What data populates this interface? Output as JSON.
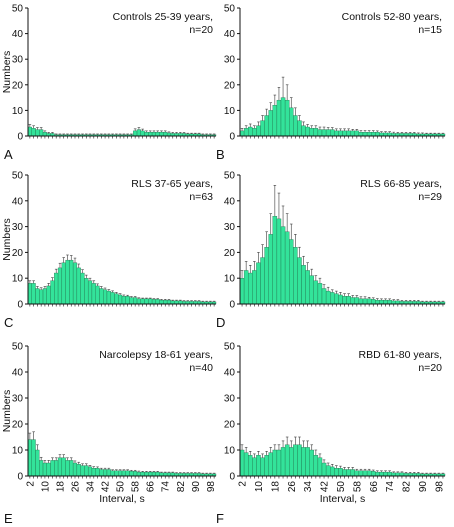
{
  "colors": {
    "bar_fill": "#33E39A",
    "bar_stroke": "#1F6B48",
    "error": "#3A3A3A",
    "axis": "#111111"
  },
  "chart_data": [
    {
      "type": "bar",
      "panel": "A",
      "title_line1": "Controls 25-39 years,",
      "title_line2": "n=20",
      "ylabel": "Numbers",
      "xlabel": "",
      "ylim": [
        0,
        50
      ],
      "yticks": [
        0,
        10,
        20,
        30,
        40,
        50
      ],
      "xticklabels": [],
      "x_start": 2,
      "x_step": 2,
      "values": [
        3.5,
        3,
        2.5,
        2.5,
        1.5,
        1,
        1,
        0.5,
        0.5,
        0.5,
        0.5,
        0.5,
        0.5,
        0.5,
        0.5,
        0.5,
        0.5,
        0.5,
        0.5,
        0.5,
        0.5,
        0.5,
        0.5,
        0.5,
        0.5,
        0.5,
        0.5,
        0.5,
        2,
        2.5,
        2,
        1.5,
        1.5,
        1.5,
        1.5,
        1.5,
        1.5,
        1.2,
        1,
        1,
        1,
        1,
        0.8,
        0.8,
        0.8,
        0.8,
        0.5,
        0.5,
        0.5,
        0.5
      ],
      "errors": [
        1,
        1,
        0.8,
        0.8,
        0.5,
        0.4,
        0.4,
        0.3,
        0.3,
        0.3,
        0.3,
        0.3,
        0.3,
        0.3,
        0.3,
        0.3,
        0.3,
        0.3,
        0.3,
        0.3,
        0.3,
        0.3,
        0.3,
        0.3,
        0.3,
        0.3,
        0.3,
        0.3,
        0.8,
        0.8,
        0.7,
        0.5,
        0.5,
        0.5,
        0.5,
        0.5,
        0.5,
        0.4,
        0.4,
        0.4,
        0.4,
        0.4,
        0.3,
        0.3,
        0.3,
        0.3,
        0.3,
        0.3,
        0.3,
        0.3
      ]
    },
    {
      "type": "bar",
      "panel": "B",
      "title_line1": "Controls 52-80 years,",
      "title_line2": "n=15",
      "ylabel": "",
      "xlabel": "",
      "ylim": [
        0,
        50
      ],
      "yticks": [
        0,
        10,
        20,
        30,
        40,
        50
      ],
      "xticklabels": [],
      "x_start": 2,
      "x_step": 2,
      "values": [
        2,
        3,
        3.5,
        3,
        4,
        6,
        8,
        10,
        12,
        14,
        15,
        14,
        11,
        8,
        6,
        4,
        3.5,
        3,
        3,
        2.5,
        2.5,
        2.5,
        2.5,
        2,
        2,
        2,
        2,
        2,
        2,
        1.5,
        1.5,
        1.5,
        1.5,
        1.5,
        1.2,
        1.2,
        1.2,
        1,
        1,
        1,
        1,
        1,
        1,
        0.8,
        0.8,
        0.8,
        0.8,
        0.8,
        0.8,
        0.8
      ],
      "errors": [
        1,
        1,
        1.2,
        1,
        1.5,
        2,
        2.5,
        3,
        4,
        5,
        8,
        6,
        4,
        3,
        2,
        1.5,
        1,
        1,
        1,
        1,
        1,
        0.8,
        0.8,
        0.8,
        0.8,
        0.8,
        0.8,
        0.6,
        0.6,
        0.6,
        0.6,
        0.6,
        0.6,
        0.5,
        0.5,
        0.5,
        0.5,
        0.5,
        0.4,
        0.4,
        0.4,
        0.4,
        0.4,
        0.4,
        0.4,
        0.3,
        0.3,
        0.3,
        0.3,
        0.3
      ]
    },
    {
      "type": "bar",
      "panel": "C",
      "title_line1": "RLS 37-65 years,",
      "title_line2": "n=63",
      "ylabel": "Numbers",
      "xlabel": "",
      "ylim": [
        0,
        50
      ],
      "yticks": [
        0,
        10,
        20,
        30,
        40,
        50
      ],
      "xticklabels": [],
      "x_start": 2,
      "x_step": 2,
      "values": [
        8,
        8,
        6,
        5.5,
        6,
        7,
        9,
        12,
        14,
        16,
        17,
        17,
        16,
        14,
        12,
        10,
        9,
        8,
        7,
        6,
        5.5,
        5,
        4.5,
        4,
        3.5,
        3,
        3,
        2.5,
        2.5,
        2,
        2,
        2,
        2,
        1.8,
        1.8,
        1.5,
        1.5,
        1.5,
        1.2,
        1.2,
        1.2,
        1,
        1,
        1,
        1,
        1,
        0.8,
        0.8,
        0.8,
        0.8
      ],
      "errors": [
        1,
        1,
        0.8,
        0.8,
        0.8,
        1,
        1.2,
        1.5,
        1.8,
        2,
        2,
        1.8,
        1.8,
        1.5,
        1.3,
        1.2,
        1,
        1,
        0.8,
        0.8,
        0.7,
        0.6,
        0.6,
        0.5,
        0.5,
        0.5,
        0.4,
        0.4,
        0.4,
        0.4,
        0.3,
        0.3,
        0.3,
        0.3,
        0.3,
        0.3,
        0.3,
        0.3,
        0.3,
        0.3,
        0.3,
        0.3,
        0.3,
        0.3,
        0.3,
        0.3,
        0.3,
        0.3,
        0.3,
        0.3
      ]
    },
    {
      "type": "bar",
      "panel": "D",
      "title_line1": "RLS 66-85 years,",
      "title_line2": "n=29",
      "ylabel": "",
      "xlabel": "",
      "ylim": [
        0,
        50
      ],
      "yticks": [
        0,
        10,
        20,
        30,
        40,
        50
      ],
      "xticklabels": [],
      "x_start": 2,
      "x_step": 2,
      "values": [
        10,
        13,
        12,
        13,
        16,
        18,
        22,
        27,
        34,
        33,
        30,
        28,
        25,
        22,
        18,
        15,
        13,
        11,
        9,
        8,
        6,
        5,
        4.5,
        4,
        3.5,
        3,
        3,
        2.5,
        2.5,
        2,
        2,
        2,
        1.8,
        1.5,
        1.5,
        1.5,
        1.5,
        1.2,
        1.2,
        1,
        1,
        1,
        1,
        1,
        0.8,
        0.8,
        0.8,
        0.8,
        0.8,
        0.8
      ],
      "errors": [
        3,
        3.5,
        3,
        3.5,
        4,
        5,
        6,
        8,
        12,
        10,
        8,
        7,
        6,
        5,
        4,
        3.5,
        3,
        2.5,
        2,
        2,
        1.5,
        1.5,
        1,
        1,
        1,
        1,
        1,
        0.8,
        0.8,
        0.8,
        0.8,
        0.6,
        0.6,
        0.6,
        0.5,
        0.5,
        0.5,
        0.5,
        0.5,
        0.4,
        0.4,
        0.4,
        0.4,
        0.4,
        0.3,
        0.3,
        0.3,
        0.3,
        0.3,
        0.3
      ]
    },
    {
      "type": "bar",
      "panel": "E",
      "title_line1": "Narcolepsy 18-61 years,",
      "title_line2": "n=40",
      "ylabel": "Numbers",
      "xlabel": "Interval, s",
      "ylim": [
        0,
        50
      ],
      "yticks": [
        0,
        10,
        20,
        30,
        40,
        50
      ],
      "xticklabels": [
        "2",
        "10",
        "18",
        "26",
        "34",
        "42",
        "50",
        "58",
        "66",
        "74",
        "82",
        "90",
        "98"
      ],
      "x_start": 2,
      "x_step": 2,
      "values": [
        14,
        14,
        10,
        6,
        5,
        5,
        6,
        6,
        7,
        7,
        6,
        6,
        5,
        4.5,
        4,
        4,
        3.5,
        3,
        3,
        2.5,
        2.5,
        2.5,
        2,
        2,
        2,
        2,
        2,
        1.8,
        1.8,
        1.5,
        1.5,
        1.5,
        1.5,
        1.5,
        1.5,
        1.2,
        1.2,
        1.2,
        1.2,
        1,
        1,
        1,
        1,
        1,
        1,
        1,
        0.8,
        0.8,
        0.8,
        0.8
      ],
      "errors": [
        2.5,
        3,
        2,
        1.2,
        1,
        1,
        1,
        1,
        1.2,
        1.2,
        1,
        1,
        0.8,
        0.8,
        0.7,
        0.7,
        0.6,
        0.6,
        0.5,
        0.5,
        0.5,
        0.5,
        0.4,
        0.4,
        0.4,
        0.4,
        0.4,
        0.4,
        0.4,
        0.4,
        0.3,
        0.3,
        0.3,
        0.3,
        0.3,
        0.3,
        0.3,
        0.3,
        0.3,
        0.3,
        0.3,
        0.3,
        0.3,
        0.3,
        0.3,
        0.3,
        0.3,
        0.3,
        0.3,
        0.3
      ]
    },
    {
      "type": "bar",
      "panel": "F",
      "title_line1": "RBD 61-80 years,",
      "title_line2": "n=20",
      "ylabel": "",
      "xlabel": "Interval, s",
      "ylim": [
        0,
        50
      ],
      "yticks": [
        0,
        10,
        20,
        30,
        40,
        50
      ],
      "xticklabels": [
        "2",
        "10",
        "18",
        "26",
        "34",
        "42",
        "50",
        "58",
        "66",
        "74",
        "82",
        "90",
        "98"
      ],
      "x_start": 2,
      "x_step": 2,
      "values": [
        10,
        9,
        8,
        7,
        8,
        7,
        8,
        9,
        10,
        10,
        11,
        12,
        11,
        12,
        12,
        11,
        11,
        10,
        8,
        7,
        5,
        4,
        3.5,
        3,
        3,
        2.5,
        2.5,
        2.5,
        2,
        2,
        2,
        2,
        1.8,
        1.5,
        1.5,
        1.5,
        1.5,
        1.2,
        1.2,
        1.2,
        1,
        1,
        1,
        1,
        0.8,
        0.8,
        0.8,
        0.8,
        0.8,
        0.8
      ],
      "errors": [
        2,
        2,
        1.5,
        1.5,
        1.5,
        1.5,
        1.5,
        2,
        2,
        2,
        2.5,
        3,
        2.5,
        3,
        3,
        2.5,
        2.5,
        2,
        2,
        1.5,
        1.2,
        1,
        1,
        1,
        0.8,
        0.8,
        0.8,
        0.8,
        0.6,
        0.6,
        0.6,
        0.6,
        0.5,
        0.5,
        0.5,
        0.5,
        0.5,
        0.4,
        0.4,
        0.4,
        0.4,
        0.4,
        0.4,
        0.4,
        0.3,
        0.3,
        0.3,
        0.3,
        0.3,
        0.3
      ]
    }
  ]
}
